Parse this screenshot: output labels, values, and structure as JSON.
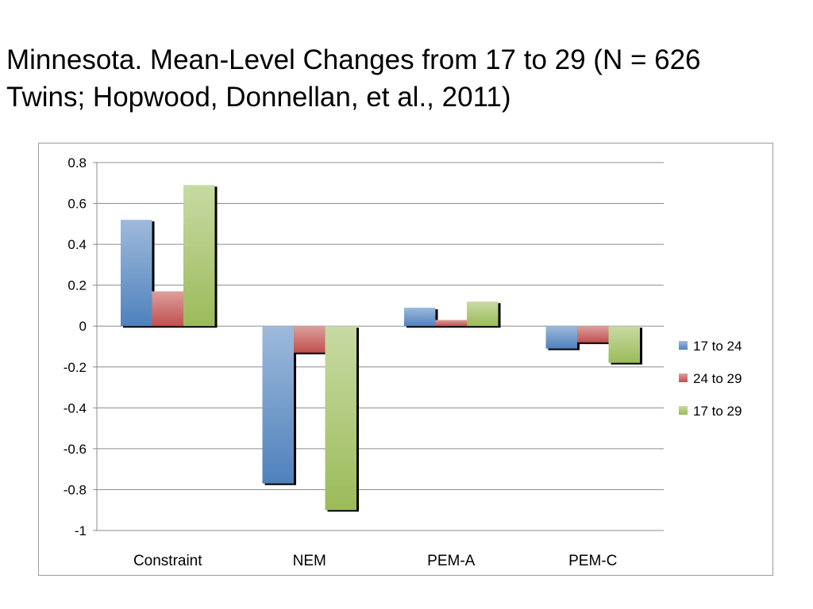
{
  "title": {
    "line1": "Minnesota. Mean-Level Changes from 17 to 29 (N = 626",
    "line2": "Twins; Hopwood, Donnellan, et al., 2011)"
  },
  "chart_data": {
    "type": "bar",
    "categories": [
      "Constraint",
      "NEM",
      "PEM-A",
      "PEM-C"
    ],
    "series": [
      {
        "name": "17 to 24",
        "values": [
          0.52,
          -0.77,
          0.09,
          -0.11
        ],
        "color": "#4f81bd"
      },
      {
        "name": "24 to 29",
        "values": [
          0.17,
          -0.13,
          0.03,
          -0.08
        ],
        "color": "#c0504d"
      },
      {
        "name": "17 to 29",
        "values": [
          0.69,
          -0.9,
          0.12,
          -0.18
        ],
        "color": "#9bbb59"
      }
    ],
    "ylim": [
      -1,
      0.8
    ],
    "yticks": [
      0.8,
      0.6,
      0.4,
      0.2,
      0,
      -0.2,
      -0.4,
      -0.6,
      -0.8,
      -1
    ],
    "ytick_labels": [
      "0.8",
      "0.6",
      "0.4",
      "0.2",
      "0",
      "-0.2",
      "-0.4",
      "-0.6",
      "-0.8",
      "-1"
    ],
    "grid": true,
    "legend_position": "right"
  }
}
